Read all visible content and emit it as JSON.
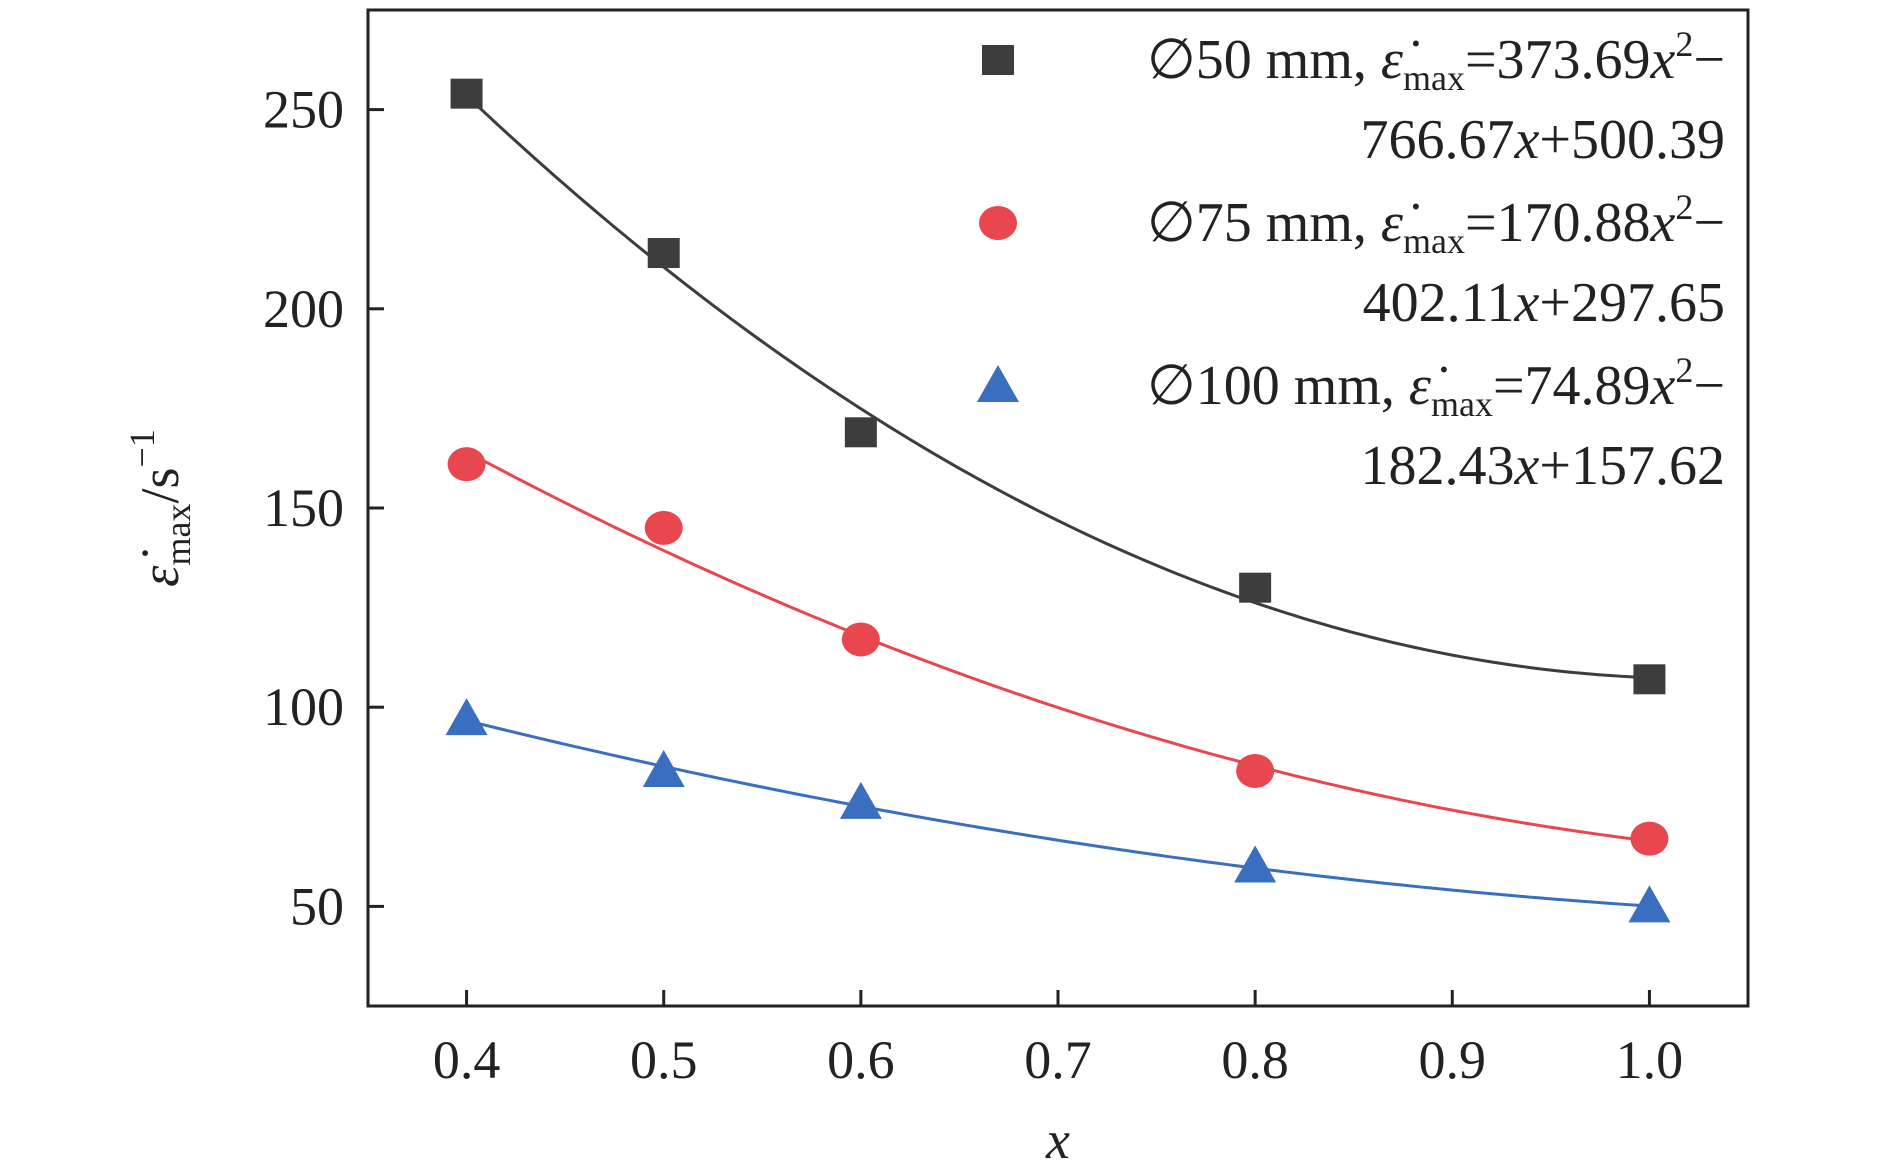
{
  "chart_data": {
    "type": "scatter",
    "xlabel": "x",
    "ylabel": {
      "symbol": "ε̇",
      "subscript": "max",
      "unit": "/s",
      "unit_superscript": "−1"
    },
    "xlim": [
      0.35,
      1.05
    ],
    "ylim": [
      25,
      275
    ],
    "xticks": [
      0.4,
      0.5,
      0.6,
      0.7,
      0.8,
      0.9,
      1.0
    ],
    "xtick_labels": [
      "0.4",
      "0.5",
      "0.6",
      "0.7",
      "0.8",
      "0.9",
      "1.0"
    ],
    "yticks": [
      50,
      100,
      150,
      200,
      250
    ],
    "ytick_labels": [
      "50",
      "100",
      "150",
      "200",
      "250"
    ],
    "grid": false,
    "legend_position": "top-right",
    "series": [
      {
        "name": "∅50 mm",
        "marker": "square",
        "color": "#3d3d3d",
        "x": [
          0.4,
          0.5,
          0.6,
          0.8,
          1.0
        ],
        "y": [
          254,
          214,
          169,
          130,
          107
        ],
        "fit": {
          "a": 373.69,
          "b": -766.67,
          "c": 500.39
        },
        "legend_line1": {
          "name": "∅50 mm, ",
          "coef": "=373.69",
          "tail": "−"
        },
        "legend_line2": {
          "num1": "766.67",
          "num2": "+500.39"
        }
      },
      {
        "name": "∅75 mm",
        "marker": "circle",
        "color": "#e8474f",
        "x": [
          0.4,
          0.5,
          0.6,
          0.8,
          1.0
        ],
        "y": [
          161,
          145,
          117,
          84,
          67
        ],
        "fit": {
          "a": 170.88,
          "b": -402.11,
          "c": 297.65
        },
        "legend_line1": {
          "name": "∅75 mm, ",
          "coef": "=170.88",
          "tail": "−"
        },
        "legend_line2": {
          "num1": "402.11",
          "num2": "+297.65"
        }
      },
      {
        "name": "∅100 mm",
        "marker": "triangle",
        "color": "#3a6fbf",
        "x": [
          0.4,
          0.5,
          0.6,
          0.8,
          1.0
        ],
        "y": [
          97,
          84,
          76,
          60,
          50
        ],
        "fit": {
          "a": 74.89,
          "b": -182.43,
          "c": 157.62
        },
        "legend_line1": {
          "name": "∅100 mm, ",
          "coef": "=74.89",
          "tail": "−"
        },
        "legend_line2": {
          "num1": "182.43",
          "num2": "+157.62"
        }
      }
    ],
    "legend_symbols": {
      "epsilon": "ε̇",
      "sub": "max",
      "var": "x",
      "sup2": "2"
    }
  }
}
